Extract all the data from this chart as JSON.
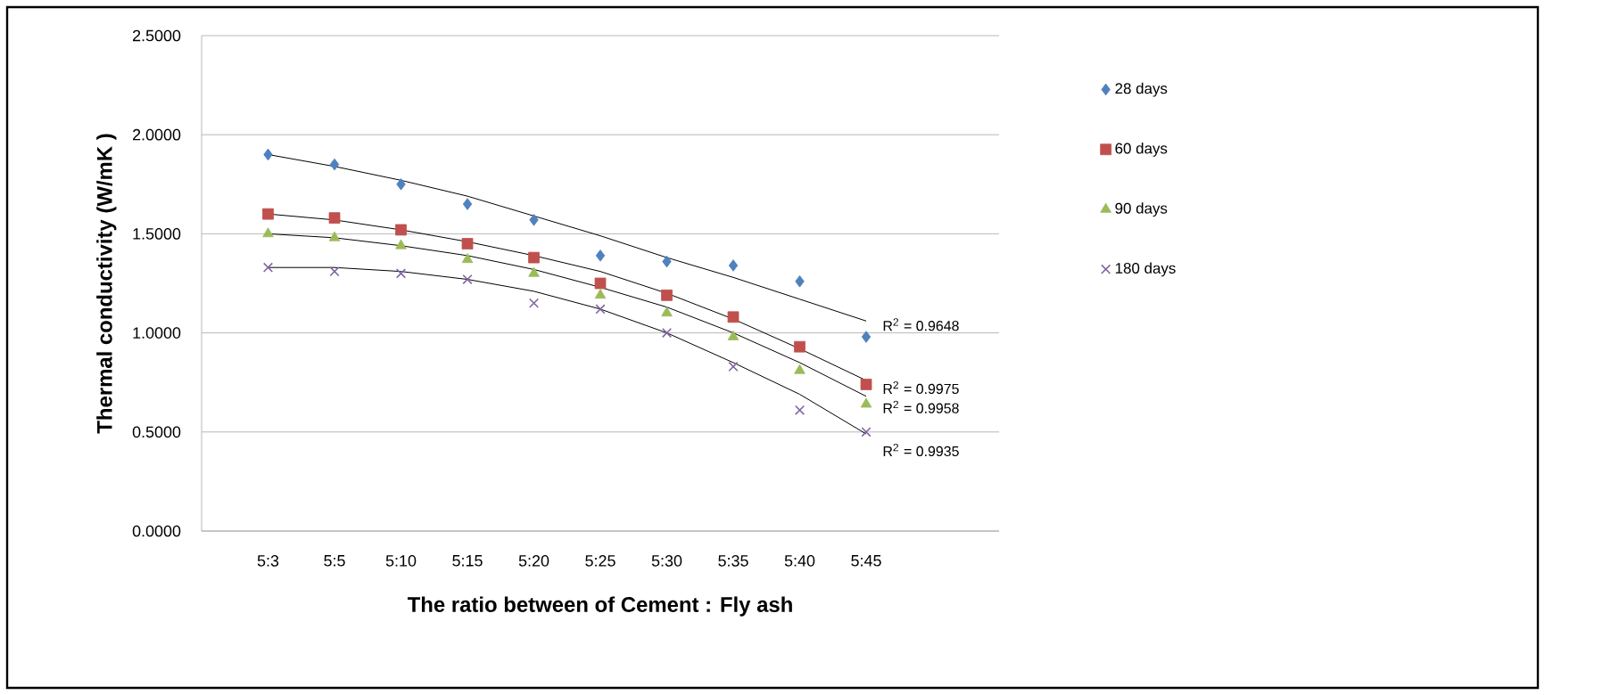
{
  "chart_data": {
    "type": "scatter",
    "xlabel": "The  ratio between  of Cement :  Fly ash",
    "ylabel": "Thermal conductivity  (W/mK )",
    "categories": [
      "5:3",
      "5:5",
      "5:10",
      "5:15",
      "5:20",
      "5:25",
      "5:30",
      "5:35",
      "5:40",
      "5:45"
    ],
    "ylim": [
      0,
      2.5
    ],
    "yticks": [
      {
        "value": 0,
        "label": "0.0000"
      },
      {
        "value": 0.5,
        "label": "0.5000"
      },
      {
        "value": 1,
        "label": "1.0000"
      },
      {
        "value": 1.5,
        "label": "1.5000"
      },
      {
        "value": 2,
        "label": "2.0000"
      },
      {
        "value": 2.5,
        "label": "2.5000"
      }
    ],
    "grid": "y",
    "legend": "right",
    "series": [
      {
        "name": "28 days",
        "color": "#4f81bd",
        "marker": "diamond",
        "values": [
          1.9,
          1.85,
          1.75,
          1.65,
          1.57,
          1.39,
          1.36,
          1.34,
          1.26,
          0.98
        ]
      },
      {
        "name": "60 days",
        "color": "#c0504d",
        "marker": "square",
        "values": [
          1.6,
          1.58,
          1.52,
          1.45,
          1.38,
          1.25,
          1.19,
          1.08,
          0.93,
          0.74
        ]
      },
      {
        "name": "90 days",
        "color": "#9bbb59",
        "marker": "triangle",
        "values": [
          1.5,
          1.48,
          1.44,
          1.37,
          1.3,
          1.19,
          1.1,
          0.98,
          0.81,
          0.64
        ]
      },
      {
        "name": "180 days",
        "color": "#8064a2",
        "marker": "cross",
        "values": [
          1.33,
          1.31,
          1.3,
          1.27,
          1.15,
          1.12,
          1.0,
          0.83,
          0.61,
          0.5
        ]
      },
      {
        "type": "line",
        "color": "#000000",
        "marker": "none",
        "values": [
          1.9,
          1.84,
          1.77,
          1.69,
          1.59,
          1.49,
          1.38,
          1.28,
          1.17,
          1.06
        ]
      },
      {
        "type": "line",
        "color": "#000000",
        "marker": "none",
        "values": [
          1.6,
          1.57,
          1.52,
          1.46,
          1.39,
          1.31,
          1.2,
          1.07,
          0.92,
          0.76
        ]
      },
      {
        "type": "line",
        "color": "#000000",
        "marker": "none",
        "values": [
          1.5,
          1.48,
          1.44,
          1.39,
          1.32,
          1.23,
          1.13,
          1.0,
          0.85,
          0.68
        ]
      },
      {
        "type": "line",
        "color": "#000000",
        "marker": "none",
        "values": [
          1.33,
          1.33,
          1.31,
          1.27,
          1.21,
          1.12,
          1.0,
          0.85,
          0.69,
          0.49
        ]
      }
    ],
    "annotations": [
      "R$^{2}$ = 0.9648",
      "R$^{2}$ = 0.9975",
      "R$^{2}$ = 0.9958",
      "R$^{2}$ = 0.9935"
    ]
  }
}
